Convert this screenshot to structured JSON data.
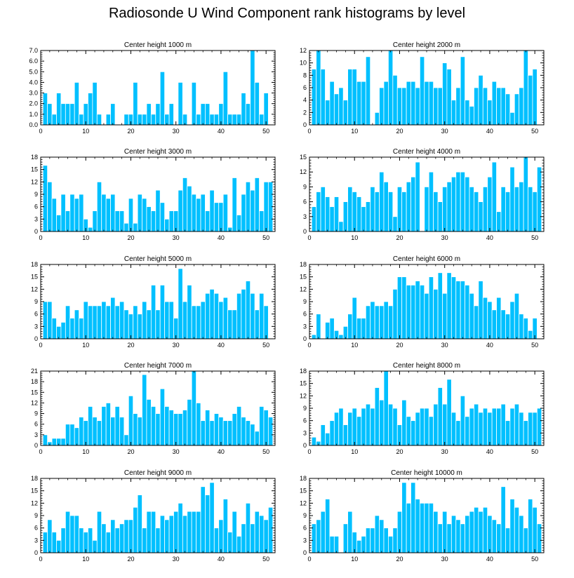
{
  "title": "Radiosonde U Wind Component rank histograms by level",
  "chart_data": [
    {
      "type": "bar",
      "title": "Center height 1000 m",
      "ylim": [
        0,
        7
      ],
      "yticks": [
        0,
        1,
        2,
        3,
        4,
        5,
        6,
        7
      ],
      "ytick_labels": [
        "0.0",
        "1.0",
        "2.0",
        "3.0",
        "4.0",
        "5.0",
        "6.0",
        "7.0"
      ],
      "xlim": [
        0,
        52
      ],
      "xticks": [
        0,
        10,
        20,
        30,
        40,
        50
      ],
      "x": [
        1,
        2,
        3,
        4,
        5,
        6,
        7,
        8,
        9,
        10,
        11,
        12,
        13,
        14,
        15,
        16,
        17,
        18,
        19,
        20,
        21,
        22,
        23,
        24,
        25,
        26,
        27,
        28,
        29,
        30,
        31,
        32,
        33,
        34,
        35,
        36,
        37,
        38,
        39,
        40,
        41,
        42,
        43,
        44,
        45,
        46,
        47,
        48,
        49,
        50,
        51
      ],
      "values": [
        3,
        2,
        1,
        3,
        2,
        2,
        2,
        4,
        1,
        2,
        3,
        4,
        1,
        0,
        1,
        2,
        0,
        0,
        1,
        1,
        4,
        1,
        1,
        2,
        1,
        2,
        5,
        1,
        2,
        0,
        4,
        1,
        0,
        4,
        1,
        2,
        2,
        1,
        1,
        2,
        5,
        1,
        1,
        1,
        3,
        2,
        7,
        4,
        1,
        3,
        0
      ]
    },
    {
      "type": "bar",
      "title": "Center height 2000 m",
      "ylim": [
        0,
        12
      ],
      "yticks": [
        0,
        2,
        4,
        6,
        8,
        10,
        12
      ],
      "ytick_labels": [
        "0",
        "2",
        "4",
        "6",
        "8",
        "10",
        "12"
      ],
      "xlim": [
        0,
        52
      ],
      "xticks": [
        0,
        10,
        20,
        30,
        40,
        50
      ],
      "x": [
        1,
        2,
        3,
        4,
        5,
        6,
        7,
        8,
        9,
        10,
        11,
        12,
        13,
        14,
        15,
        16,
        17,
        18,
        19,
        20,
        21,
        22,
        23,
        24,
        25,
        26,
        27,
        28,
        29,
        30,
        31,
        32,
        33,
        34,
        35,
        36,
        37,
        38,
        39,
        40,
        41,
        42,
        43,
        44,
        45,
        46,
        47,
        48,
        49,
        50,
        51
      ],
      "values": [
        9,
        12,
        9,
        4,
        7,
        5,
        6,
        4,
        9,
        9,
        7,
        7,
        11,
        0,
        2,
        6,
        7,
        12,
        8,
        6,
        6,
        7,
        7,
        6,
        11,
        7,
        7,
        6,
        6,
        10,
        9,
        4,
        6,
        11,
        4,
        3,
        6,
        8,
        6,
        4,
        7,
        6,
        6,
        5,
        2,
        5,
        6,
        12,
        8,
        9,
        0
      ]
    },
    {
      "type": "bar",
      "title": "Center height 3000 m",
      "ylim": [
        0,
        18
      ],
      "yticks": [
        0,
        3,
        6,
        9,
        12,
        15,
        18
      ],
      "ytick_labels": [
        "0",
        "3",
        "6",
        "9",
        "12",
        "15",
        "18"
      ],
      "xlim": [
        0,
        52
      ],
      "xticks": [
        0,
        10,
        20,
        30,
        40,
        50
      ],
      "x": [
        1,
        2,
        3,
        4,
        5,
        6,
        7,
        8,
        9,
        10,
        11,
        12,
        13,
        14,
        15,
        16,
        17,
        18,
        19,
        20,
        21,
        22,
        23,
        24,
        25,
        26,
        27,
        28,
        29,
        30,
        31,
        32,
        33,
        34,
        35,
        36,
        37,
        38,
        39,
        40,
        41,
        42,
        43,
        44,
        45,
        46,
        47,
        48,
        49,
        50,
        51
      ],
      "values": [
        16,
        12,
        8,
        4,
        9,
        5,
        9,
        8,
        9,
        3,
        1,
        5,
        12,
        9,
        8,
        9,
        5,
        5,
        2,
        8,
        2,
        9,
        8,
        6,
        5,
        10,
        7,
        3,
        5,
        5,
        10,
        13,
        11,
        9,
        8,
        9,
        5,
        10,
        7,
        7,
        9,
        1,
        13,
        4,
        9,
        12,
        10,
        13,
        5,
        12,
        12
      ]
    },
    {
      "type": "bar",
      "title": "Center height 4000 m",
      "ylim": [
        0,
        15
      ],
      "yticks": [
        0,
        3,
        6,
        9,
        12,
        15
      ],
      "ytick_labels": [
        "0",
        "3",
        "6",
        "9",
        "12",
        "15"
      ],
      "xlim": [
        0,
        52
      ],
      "xticks": [
        0,
        10,
        20,
        30,
        40,
        50
      ],
      "x": [
        1,
        2,
        3,
        4,
        5,
        6,
        7,
        8,
        9,
        10,
        11,
        12,
        13,
        14,
        15,
        16,
        17,
        18,
        19,
        20,
        21,
        22,
        23,
        24,
        25,
        26,
        27,
        28,
        29,
        30,
        31,
        32,
        33,
        34,
        35,
        36,
        37,
        38,
        39,
        40,
        41,
        42,
        43,
        44,
        45,
        46,
        47,
        48,
        49,
        50,
        51
      ],
      "values": [
        5,
        8,
        9,
        7,
        5,
        7,
        2,
        6,
        9,
        8,
        7,
        5,
        6,
        9,
        8,
        12,
        10,
        8,
        3,
        9,
        8,
        10,
        11,
        14,
        0,
        9,
        12,
        8,
        6,
        9,
        10,
        11,
        12,
        12,
        11,
        9,
        8,
        6,
        9,
        11,
        14,
        4,
        9,
        8,
        13,
        9,
        10,
        15,
        9,
        8,
        13
      ]
    },
    {
      "type": "bar",
      "title": "Center height 5000 m",
      "ylim": [
        0,
        18
      ],
      "yticks": [
        0,
        3,
        6,
        9,
        12,
        15,
        18
      ],
      "ytick_labels": [
        "0",
        "3",
        "6",
        "9",
        "12",
        "15",
        "18"
      ],
      "xlim": [
        0,
        52
      ],
      "xticks": [
        0,
        10,
        20,
        30,
        40,
        50
      ],
      "x": [
        1,
        2,
        3,
        4,
        5,
        6,
        7,
        8,
        9,
        10,
        11,
        12,
        13,
        14,
        15,
        16,
        17,
        18,
        19,
        20,
        21,
        22,
        23,
        24,
        25,
        26,
        27,
        28,
        29,
        30,
        31,
        32,
        33,
        34,
        35,
        36,
        37,
        38,
        39,
        40,
        41,
        42,
        43,
        44,
        45,
        46,
        47,
        48,
        49,
        50,
        51
      ],
      "values": [
        9,
        9,
        5,
        3,
        4,
        8,
        5,
        7,
        5,
        9,
        8,
        8,
        8,
        9,
        8,
        10,
        8,
        9,
        7,
        6,
        8,
        6,
        9,
        7,
        13,
        7,
        13,
        9,
        9,
        5,
        17,
        9,
        13,
        8,
        8,
        9,
        11,
        12,
        11,
        9,
        10,
        7,
        7,
        11,
        12,
        14,
        11,
        7,
        11,
        8,
        0
      ]
    },
    {
      "type": "bar",
      "title": "Center height 6000 m",
      "ylim": [
        0,
        18
      ],
      "yticks": [
        0,
        3,
        6,
        9,
        12,
        15,
        18
      ],
      "ytick_labels": [
        "0",
        "3",
        "6",
        "9",
        "12",
        "15",
        "18"
      ],
      "xlim": [
        0,
        52
      ],
      "xticks": [
        0,
        10,
        20,
        30,
        40,
        50
      ],
      "x": [
        1,
        2,
        3,
        4,
        5,
        6,
        7,
        8,
        9,
        10,
        11,
        12,
        13,
        14,
        15,
        16,
        17,
        18,
        19,
        20,
        21,
        22,
        23,
        24,
        25,
        26,
        27,
        28,
        29,
        30,
        31,
        32,
        33,
        34,
        35,
        36,
        37,
        38,
        39,
        40,
        41,
        42,
        43,
        44,
        45,
        46,
        47,
        48,
        49,
        50,
        51
      ],
      "values": [
        1,
        6,
        0,
        4,
        5,
        2,
        1,
        3,
        6,
        10,
        5,
        5,
        8,
        9,
        8,
        8,
        9,
        8,
        12,
        15,
        15,
        13,
        13,
        14,
        13,
        11,
        15,
        12,
        16,
        11,
        16,
        15,
        14,
        14,
        13,
        11,
        8,
        14,
        10,
        9,
        7,
        10,
        7,
        6,
        9,
        11,
        6,
        5,
        2,
        5,
        0
      ]
    },
    {
      "type": "bar",
      "title": "Center height 7000 m",
      "ylim": [
        0,
        21
      ],
      "yticks": [
        0,
        3,
        6,
        9,
        12,
        15,
        18,
        21
      ],
      "ytick_labels": [
        "0",
        "3",
        "6",
        "9",
        "12",
        "15",
        "18",
        "21"
      ],
      "xlim": [
        0,
        52
      ],
      "xticks": [
        0,
        10,
        20,
        30,
        40,
        50
      ],
      "x": [
        1,
        2,
        3,
        4,
        5,
        6,
        7,
        8,
        9,
        10,
        11,
        12,
        13,
        14,
        15,
        16,
        17,
        18,
        19,
        20,
        21,
        22,
        23,
        24,
        25,
        26,
        27,
        28,
        29,
        30,
        31,
        32,
        33,
        34,
        35,
        36,
        37,
        38,
        39,
        40,
        41,
        42,
        43,
        44,
        45,
        46,
        47,
        48,
        49,
        50,
        51
      ],
      "values": [
        3,
        1,
        2,
        2,
        2,
        6,
        6,
        5,
        8,
        7,
        11,
        8,
        7,
        11,
        12,
        8,
        11,
        8,
        3,
        14,
        9,
        8,
        20,
        13,
        11,
        9,
        16,
        11,
        10,
        9,
        9,
        10,
        13,
        21,
        12,
        7,
        10,
        7,
        9,
        8,
        7,
        7,
        9,
        11,
        8,
        7,
        6,
        4,
        11,
        10,
        8
      ]
    },
    {
      "type": "bar",
      "title": "Center height 8000 m",
      "ylim": [
        0,
        18
      ],
      "yticks": [
        0,
        3,
        6,
        9,
        12,
        15,
        18
      ],
      "ytick_labels": [
        "0",
        "3",
        "6",
        "9",
        "12",
        "15",
        "18"
      ],
      "xlim": [
        0,
        52
      ],
      "xticks": [
        0,
        10,
        20,
        30,
        40,
        50
      ],
      "x": [
        1,
        2,
        3,
        4,
        5,
        6,
        7,
        8,
        9,
        10,
        11,
        12,
        13,
        14,
        15,
        16,
        17,
        18,
        19,
        20,
        21,
        22,
        23,
        24,
        25,
        26,
        27,
        28,
        29,
        30,
        31,
        32,
        33,
        34,
        35,
        36,
        37,
        38,
        39,
        40,
        41,
        42,
        43,
        44,
        45,
        46,
        47,
        48,
        49,
        50,
        51
      ],
      "values": [
        2,
        1,
        5,
        3,
        6,
        8,
        9,
        5,
        8,
        9,
        7,
        9,
        10,
        9,
        14,
        11,
        18,
        10,
        9,
        5,
        11,
        7,
        6,
        8,
        9,
        9,
        7,
        10,
        14,
        10,
        16,
        8,
        6,
        12,
        7,
        9,
        10,
        8,
        9,
        8,
        9,
        9,
        10,
        6,
        9,
        10,
        8,
        6,
        8,
        8,
        9
      ]
    },
    {
      "type": "bar",
      "title": "Center height 9000 m",
      "ylim": [
        0,
        18
      ],
      "yticks": [
        0,
        3,
        6,
        9,
        12,
        15,
        18
      ],
      "ytick_labels": [
        "0",
        "3",
        "6",
        "9",
        "12",
        "15",
        "18"
      ],
      "xlim": [
        0,
        52
      ],
      "xticks": [
        0,
        10,
        20,
        30,
        40,
        50
      ],
      "x": [
        1,
        2,
        3,
        4,
        5,
        6,
        7,
        8,
        9,
        10,
        11,
        12,
        13,
        14,
        15,
        16,
        17,
        18,
        19,
        20,
        21,
        22,
        23,
        24,
        25,
        26,
        27,
        28,
        29,
        30,
        31,
        32,
        33,
        34,
        35,
        36,
        37,
        38,
        39,
        40,
        41,
        42,
        43,
        44,
        45,
        46,
        47,
        48,
        49,
        50,
        51
      ],
      "values": [
        5,
        8,
        5,
        3,
        6,
        10,
        9,
        9,
        6,
        5,
        6,
        3,
        10,
        7,
        5,
        8,
        6,
        7,
        8,
        8,
        11,
        14,
        6,
        10,
        10,
        6,
        9,
        8,
        9,
        10,
        12,
        9,
        10,
        10,
        10,
        16,
        14,
        17,
        6,
        8,
        13,
        5,
        10,
        4,
        7,
        12,
        7,
        10,
        9,
        8,
        11
      ]
    },
    {
      "type": "bar",
      "title": "Center height 10000 m",
      "ylim": [
        0,
        18
      ],
      "yticks": [
        0,
        3,
        6,
        9,
        12,
        15,
        18
      ],
      "ytick_labels": [
        "0",
        "3",
        "6",
        "9",
        "12",
        "15",
        "18"
      ],
      "xlim": [
        0,
        52
      ],
      "xticks": [
        0,
        10,
        20,
        30,
        40,
        50
      ],
      "x": [
        1,
        2,
        3,
        4,
        5,
        6,
        7,
        8,
        9,
        10,
        11,
        12,
        13,
        14,
        15,
        16,
        17,
        18,
        19,
        20,
        21,
        22,
        23,
        24,
        25,
        26,
        27,
        28,
        29,
        30,
        31,
        32,
        33,
        34,
        35,
        36,
        37,
        38,
        39,
        40,
        41,
        42,
        43,
        44,
        45,
        46,
        47,
        48,
        49,
        50,
        51
      ],
      "values": [
        7,
        8,
        10,
        13,
        4,
        4,
        0,
        7,
        10,
        5,
        3,
        4,
        6,
        6,
        9,
        8,
        6,
        4,
        6,
        10,
        17,
        12,
        17,
        13,
        12,
        12,
        12,
        10,
        7,
        10,
        7,
        9,
        8,
        7,
        9,
        10,
        11,
        10,
        11,
        9,
        8,
        7,
        16,
        6,
        13,
        11,
        9,
        6,
        13,
        11,
        7
      ]
    }
  ],
  "colors": {
    "bar_fill": "#00c0ff",
    "bar_edge": "#ffffff",
    "axis": "#000000"
  }
}
